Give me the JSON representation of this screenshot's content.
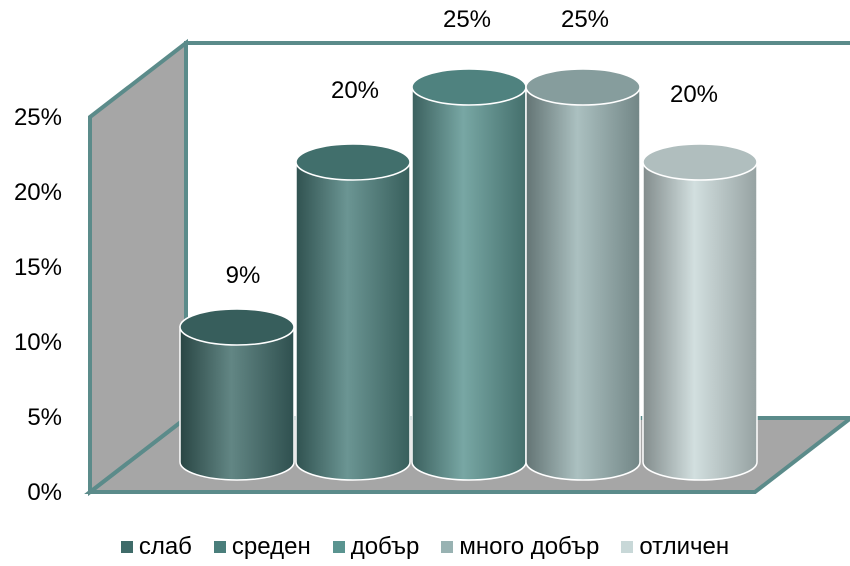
{
  "chart_data": {
    "type": "bar",
    "style": "3d-cylinder",
    "series": [
      {
        "name": "слаб",
        "value": 9,
        "label": "9%",
        "color": "#3f6b69"
      },
      {
        "name": "среден",
        "value": 20,
        "label": "20%",
        "color": "#4a7e7b"
      },
      {
        "name": "добър",
        "value": 25,
        "label": "25%",
        "color": "#5a9490"
      },
      {
        "name": "много добър",
        "value": 25,
        "label": "25%",
        "color": "#98b2b2"
      },
      {
        "name": "отличен",
        "value": 20,
        "label": "20%",
        "color": "#c8d8d8"
      }
    ],
    "yticks": [
      "0%",
      "5%",
      "10%",
      "15%",
      "20%",
      "25%"
    ],
    "ylim": [
      0,
      25
    ],
    "grid": false,
    "legend_position": "bottom",
    "wall_color": "#a6a6a6",
    "frame_color": "#5b8b8a"
  }
}
